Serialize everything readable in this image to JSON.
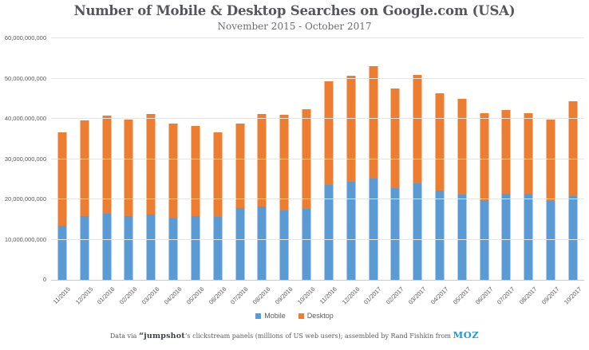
{
  "title": "Number of Mobile & Desktop Searches on Google.com (USA)",
  "subtitle": "November 2015 - October 2017",
  "chart_data": {
    "type": "bar",
    "stacked": true,
    "title": "Number of Mobile & Desktop Searches on Google.com (USA)",
    "subtitle": "November 2015 - October 2017",
    "categories": [
      "11/2015",
      "12/2015",
      "01/2016",
      "02/2016",
      "03/2016",
      "04/2016",
      "05/2016",
      "06/2016",
      "07/2016",
      "08/2016",
      "09/2016",
      "10/2016",
      "11/2016",
      "12/2016",
      "01/2017",
      "02/2017",
      "03/2017",
      "04/2017",
      "05/2017",
      "06/2017",
      "07/2017",
      "08/2017",
      "09/2017",
      "10/2017"
    ],
    "series": [
      {
        "name": "Mobile",
        "color": "#5b9bd5",
        "values": [
          13400000000,
          15800000000,
          16500000000,
          15900000000,
          16300000000,
          15300000000,
          15800000000,
          15600000000,
          17800000000,
          18300000000,
          17200000000,
          17700000000,
          23500000000,
          24400000000,
          25200000000,
          22800000000,
          24000000000,
          22200000000,
          21100000000,
          19800000000,
          21300000000,
          21400000000,
          19600000000,
          20800000000
        ]
      },
      {
        "name": "Desktop",
        "color": "#ed7d31",
        "values": [
          23200000000,
          23900000000,
          24200000000,
          24000000000,
          24900000000,
          23600000000,
          22500000000,
          21100000000,
          21000000000,
          22900000000,
          23700000000,
          24700000000,
          25800000000,
          26200000000,
          27900000000,
          24800000000,
          26900000000,
          24200000000,
          23900000000,
          21500000000,
          20800000000,
          20000000000,
          20200000000,
          23500000000
        ]
      }
    ],
    "xlabel": "",
    "ylabel": "",
    "ylim": [
      0,
      60000000000
    ],
    "ytick_values": [
      0,
      10000000000,
      20000000000,
      30000000000,
      40000000000,
      50000000000,
      60000000000
    ],
    "ytick_labels": [
      "0",
      "10,000,000,000",
      "20,000,000,000",
      "30,000,000,000",
      "40,000,000,000",
      "50,000,000,000",
      "60,000,000,000"
    ],
    "grid": true,
    "legend_position": "bottom"
  },
  "colors": {
    "mobile": "#5b9bd5",
    "desktop": "#ed7d31",
    "gridline": "#e4e5e6",
    "axis_text": "#595959",
    "title_text": "#54565a",
    "moz_blue": "#1d9ad7",
    "jumpshot_dark": "#3c404b"
  },
  "footer": {
    "prefix": "Data via",
    "jumpshot_mark": "“",
    "jumpshot_logo": "jumpshot",
    "middle": "’s clickstream panels (millions of US web users); assembled by Rand Fishkin from",
    "moz_logo": "MOZ"
  }
}
